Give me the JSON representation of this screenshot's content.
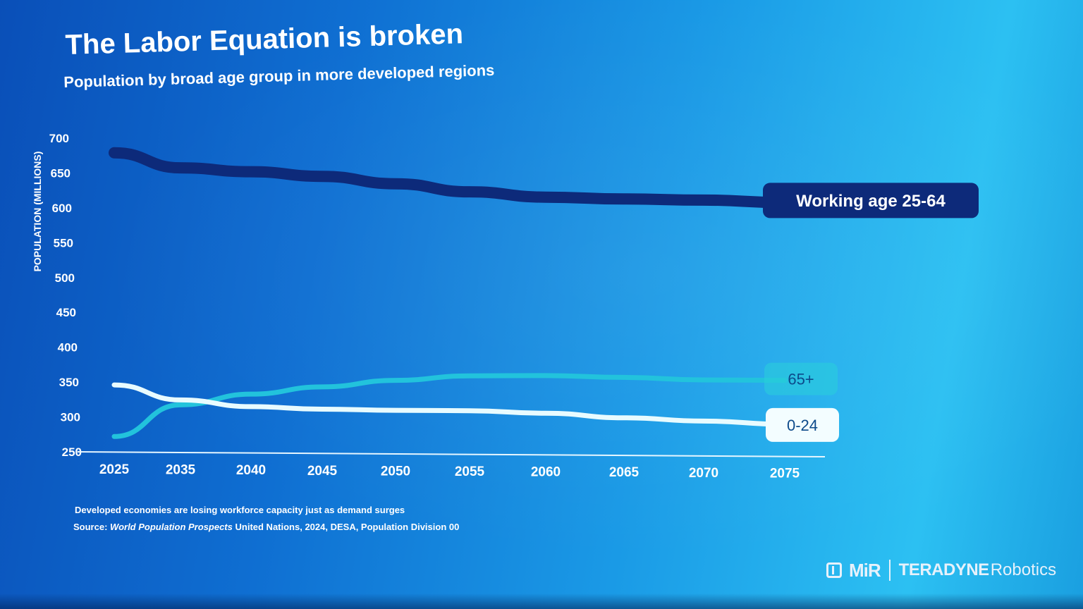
{
  "slide": {
    "title": "The Labor Equation is broken",
    "subtitle": "Population by broad age group in more developed regions",
    "footnote": "Developed economies are losing workforce capacity just as demand surges",
    "source_prefix": "Source:",
    "source_italic": "World Population Prospects",
    "source_rest": "United Nations, 2024, DESA, Population Division 00"
  },
  "logo": {
    "mir": "MiR",
    "teradyne": "TERADYNE",
    "robotics": "Robotics"
  },
  "colors": {
    "working_age": "#0d2a7a",
    "sixty_five": "#22c3dc",
    "zero_24": "#e8fbff",
    "axis": "#e6f6ff"
  },
  "chart_data": {
    "type": "line",
    "title": "The Labor Equation is broken",
    "subtitle": "Population by broad age group in more developed regions",
    "xlabel": "",
    "ylabel": "POPULATION (MILLIONS)",
    "ylim": [
      250,
      700
    ],
    "yticks": [
      "700",
      "650",
      "600",
      "550",
      "500",
      "450",
      "400",
      "350",
      "300",
      "250"
    ],
    "categories": [
      "2025",
      "2035",
      "2040",
      "2045",
      "2050",
      "2055",
      "2060",
      "2065",
      "2070",
      "2075"
    ],
    "series": [
      {
        "name": "Working age 25-64",
        "values": [
          679,
          658,
          653,
          647,
          637,
          626,
          619,
          617,
          616,
          613
        ]
      },
      {
        "name": "65+",
        "values": [
          272,
          318,
          334,
          345,
          355,
          362,
          363,
          361,
          358,
          358
        ]
      },
      {
        "name": "0-24",
        "values": [
          346,
          325,
          316,
          313,
          312,
          312,
          309,
          303,
          299,
          295
        ]
      }
    ],
    "grid": false,
    "legend": "inline labels at line ends"
  }
}
